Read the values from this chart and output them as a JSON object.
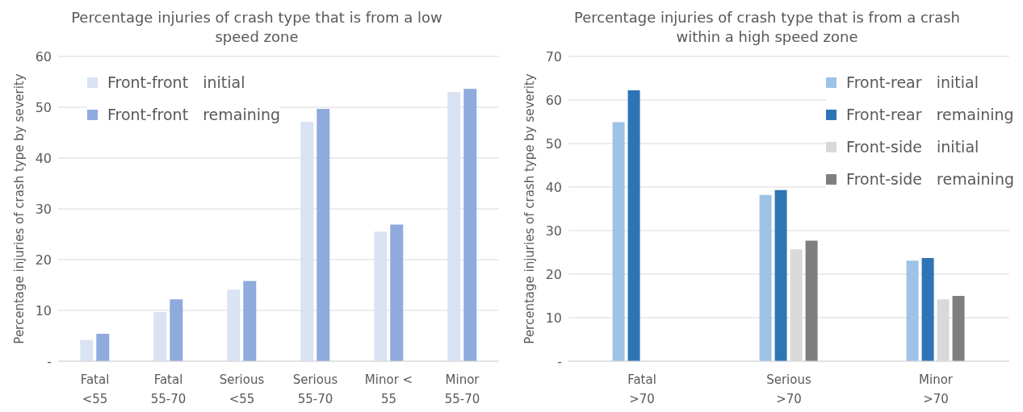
{
  "chart_data": [
    {
      "type": "bar",
      "title": "Percentage injuries of crash type that is from a low speed zone",
      "ylabel": "Percentage injuries  of crash type by severity",
      "categories": [
        "Fatal <55",
        "Fatal 55-70",
        "Serious <55",
        "Serious 55-70",
        "Minor < 55",
        "Minor 55-70"
      ],
      "series": [
        {
          "name": "Front-front   initial",
          "color": "#dae3f3",
          "values": [
            4.2,
            9.7,
            14.1,
            47.1,
            25.5,
            53.0
          ]
        },
        {
          "name": "Front-front   remaining",
          "color": "#8faadc",
          "values": [
            5.4,
            12.2,
            15.8,
            49.7,
            26.9,
            53.6
          ]
        }
      ],
      "ylim": [
        0,
        60
      ],
      "yticks": [
        {
          "value": 0,
          "label": "-"
        },
        10,
        20,
        30,
        40,
        50,
        60
      ],
      "grid": "y",
      "legend": "top left"
    },
    {
      "type": "bar",
      "title": "Percentage injuries of crash type that is from a crash within a high speed zone",
      "ylabel": "Percentage injuries  of crash type by severity",
      "categories": [
        "Fatal >70",
        "Serious >70",
        "Minor >70"
      ],
      "series": [
        {
          "name": "Front-rear   initial",
          "color": "#9dc3e6",
          "values": [
            54.9,
            38.2,
            23.1
          ]
        },
        {
          "name": "Front-rear   remaining",
          "color": "#2e75b6",
          "values": [
            62.2,
            39.3,
            23.7
          ]
        },
        {
          "name": "Front-side   initial",
          "color": "#d9d9d9",
          "values": [
            null,
            25.7,
            14.2
          ]
        },
        {
          "name": "Front-side   remaining",
          "color": "#7f7f7f",
          "values": [
            null,
            27.7,
            15.0
          ]
        }
      ],
      "ylim": [
        0,
        70
      ],
      "yticks": [
        {
          "value": 0,
          "label": "-"
        },
        10,
        20,
        30,
        40,
        50,
        60,
        70
      ],
      "grid": "y",
      "legend": "top right"
    }
  ]
}
